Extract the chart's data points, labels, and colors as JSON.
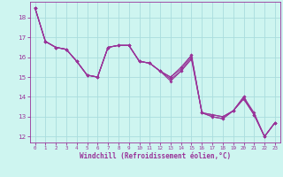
{
  "xlabel": "Windchill (Refroidissement éolien,°C)",
  "background_color": "#cef5f0",
  "line_color": "#993399",
  "grid_color": "#aadddd",
  "xlim": [
    -0.5,
    23.5
  ],
  "ylim": [
    11.7,
    18.8
  ],
  "xticks": [
    0,
    1,
    2,
    3,
    4,
    5,
    6,
    7,
    8,
    9,
    10,
    11,
    12,
    13,
    14,
    15,
    16,
    17,
    18,
    19,
    20,
    21,
    22,
    23
  ],
  "yticks": [
    12,
    13,
    14,
    15,
    16,
    17,
    18
  ],
  "series": [
    [
      18.5,
      16.8,
      16.5,
      16.4,
      15.8,
      15.1,
      15.0,
      16.5,
      16.6,
      16.6,
      15.8,
      15.7,
      15.3,
      15.0,
      15.5,
      16.1,
      13.2,
      13.1,
      13.0,
      13.3,
      14.0,
      13.1,
      12.0,
      12.7
    ],
    [
      18.5,
      16.8,
      16.5,
      16.4,
      15.8,
      15.1,
      15.0,
      16.5,
      16.6,
      16.6,
      15.8,
      15.7,
      15.3,
      15.0,
      15.4,
      16.1,
      13.2,
      13.1,
      13.0,
      13.3,
      14.0,
      13.2,
      12.0,
      12.7
    ],
    [
      18.5,
      16.8,
      16.5,
      16.4,
      15.8,
      15.1,
      15.0,
      16.5,
      16.6,
      16.6,
      15.8,
      15.7,
      15.3,
      14.9,
      15.3,
      16.0,
      13.2,
      13.0,
      12.9,
      13.3,
      13.9,
      13.1,
      12.0,
      12.7
    ],
    [
      18.5,
      16.8,
      16.5,
      16.4,
      15.8,
      15.1,
      15.0,
      16.5,
      16.6,
      16.6,
      15.8,
      15.7,
      15.3,
      14.8,
      15.3,
      15.9,
      13.2,
      13.0,
      12.9,
      13.3,
      13.9,
      13.1,
      12.0,
      12.7
    ]
  ]
}
